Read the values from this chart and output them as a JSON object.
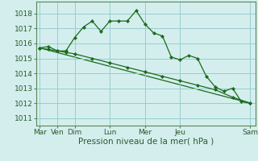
{
  "background_color": "#d4eeee",
  "grid_color": "#99cccc",
  "line_color": "#1a6b1a",
  "marker_color": "#1a6b1a",
  "xlabel": "Pression niveau de la mer( hPa )",
  "ylim": [
    1010.5,
    1018.8
  ],
  "yticks": [
    1011,
    1012,
    1013,
    1014,
    1015,
    1016,
    1017,
    1018
  ],
  "day_tick_positions": [
    0,
    1,
    2,
    4,
    6,
    8,
    12
  ],
  "day_tick_labels": [
    "Mar",
    "Ven",
    "Dim",
    "Lun",
    "Mer",
    "Jeu",
    "Sam"
  ],
  "series1_x": [
    0,
    0.5,
    1,
    1.5,
    2,
    2.5,
    3,
    3.5,
    4,
    4.5,
    5,
    5.5,
    6,
    6.5,
    7,
    7.5,
    8,
    8.5,
    9,
    9.5,
    10,
    10.5,
    11,
    11.5,
    12
  ],
  "series1_y": [
    1015.7,
    1015.8,
    1015.5,
    1015.5,
    1016.4,
    1017.1,
    1017.5,
    1016.8,
    1017.5,
    1017.5,
    1017.5,
    1018.2,
    1017.3,
    1016.7,
    1016.5,
    1015.1,
    1014.9,
    1015.2,
    1015.0,
    1013.8,
    1013.1,
    1012.8,
    1013.0,
    1012.1,
    1012.0
  ],
  "series2_x": [
    0,
    0.5,
    1,
    1.5,
    2,
    3,
    4,
    5,
    6,
    7,
    8,
    9,
    10,
    11,
    12
  ],
  "series2_y": [
    1015.7,
    1015.6,
    1015.5,
    1015.4,
    1015.3,
    1015.0,
    1014.7,
    1014.4,
    1014.1,
    1013.8,
    1013.5,
    1013.2,
    1012.9,
    1012.4,
    1012.0
  ],
  "series3_x": [
    0,
    12
  ],
  "series3_y": [
    1015.7,
    1012.0
  ],
  "xlim": [
    -0.2,
    12.3
  ],
  "figsize": [
    3.2,
    2.0
  ],
  "dpi": 100
}
